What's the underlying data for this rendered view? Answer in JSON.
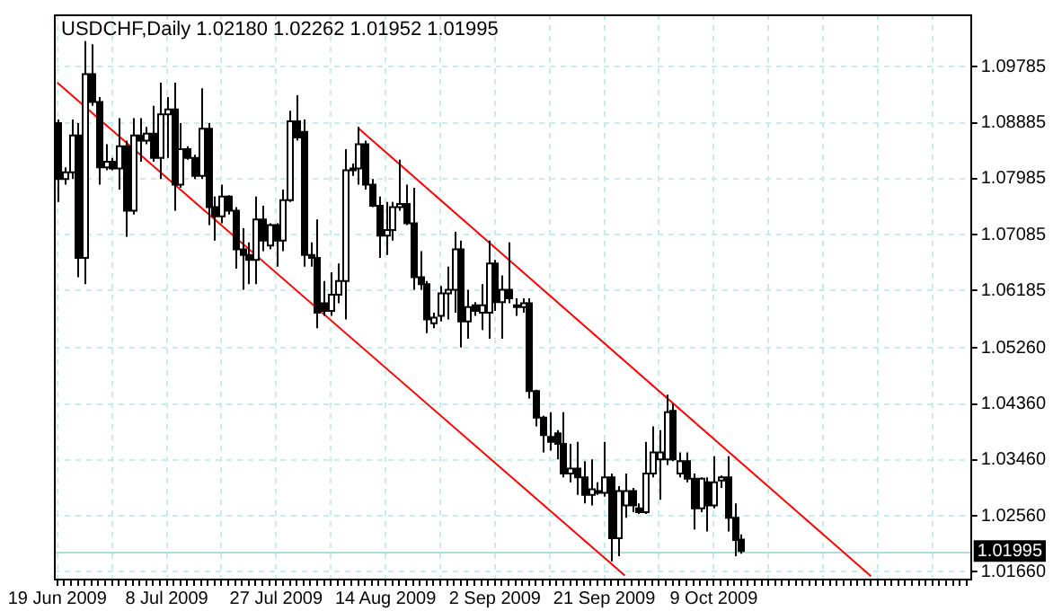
{
  "chart_data": {
    "type": "candlestick",
    "title": "USDCHF,Daily 1.02180 1.02262 1.01952 1.01995",
    "categories": [
      "19 Jun 2009",
      null,
      null,
      null,
      null,
      null,
      null,
      null,
      null,
      null,
      null,
      null,
      null,
      null,
      null,
      null,
      "8 Jul 2009",
      null,
      null,
      null,
      null,
      null,
      null,
      null,
      null,
      null,
      null,
      null,
      null,
      null,
      null,
      null,
      "27 Jul 2009",
      null,
      null,
      null,
      null,
      null,
      null,
      null,
      null,
      null,
      null,
      null,
      null,
      null,
      null,
      null,
      "14 Aug 2009",
      null,
      null,
      null,
      null,
      null,
      null,
      null,
      null,
      null,
      null,
      null,
      null,
      null,
      null,
      null,
      "2 Sep 2009",
      null,
      null,
      null,
      null,
      null,
      null,
      null,
      null,
      null,
      null,
      null,
      null,
      null,
      null,
      null,
      "21 Sep 2009",
      null,
      null,
      null,
      null,
      null,
      null,
      null,
      null,
      null,
      null,
      null,
      null,
      null,
      null,
      null,
      "9 Oct 2009",
      null,
      null,
      null,
      null,
      null,
      null,
      null,
      null,
      null,
      null,
      null,
      null,
      null,
      null,
      null,
      null,
      null,
      null,
      null,
      null,
      null,
      null,
      null,
      null,
      null,
      null,
      null,
      null,
      null,
      null,
      null,
      null,
      null,
      null,
      null,
      null,
      null
    ],
    "ohlc": [
      [
        1.0888,
        1.0894,
        1.0761,
        1.0798
      ],
      [
        1.0798,
        1.0817,
        1.0789,
        1.0809
      ],
      [
        1.0809,
        1.0894,
        1.0798,
        1.0868
      ],
      [
        1.0868,
        1.0888,
        1.064,
        1.0671
      ],
      [
        1.0671,
        1.102,
        1.0629,
        1.0967
      ],
      [
        1.0967,
        1.1015,
        1.0916,
        1.0922
      ],
      [
        1.0922,
        1.093,
        1.0789,
        1.0817
      ],
      [
        1.0817,
        1.0854,
        1.0812,
        1.0826
      ],
      [
        1.0826,
        1.0832,
        1.0812,
        1.0815
      ],
      [
        1.0815,
        1.0896,
        1.0781,
        1.0851
      ],
      [
        1.0851,
        1.086,
        1.0705,
        1.0747
      ],
      [
        1.0747,
        1.0896,
        1.0741,
        1.0868
      ],
      [
        1.0868,
        1.0896,
        1.0826,
        1.086
      ],
      [
        1.086,
        1.0882,
        1.0854,
        1.0871
      ],
      [
        1.0871,
        1.0916,
        1.0826,
        1.0832
      ],
      [
        1.0832,
        1.0953,
        1.0798,
        1.0902
      ],
      [
        1.0902,
        1.093,
        1.0832,
        1.091
      ],
      [
        1.091,
        1.0953,
        1.0747,
        1.0789
      ],
      [
        1.0789,
        1.0888,
        1.0784,
        1.0846
      ],
      [
        1.0846,
        1.0851,
        1.0829,
        1.0832
      ],
      [
        1.0832,
        1.0837,
        1.0798,
        1.0803
      ],
      [
        1.0803,
        1.0944,
        1.0798,
        1.0879
      ],
      [
        1.0879,
        1.0888,
        1.0724,
        1.0753
      ],
      [
        1.0753,
        1.077,
        1.0699,
        1.0738
      ],
      [
        1.0738,
        1.0789,
        1.0727,
        1.077
      ],
      [
        1.077,
        1.0772,
        1.0741,
        1.0747
      ],
      [
        1.0747,
        1.0753,
        1.0654,
        1.0685
      ],
      [
        1.0685,
        1.0719,
        1.062,
        1.0676
      ],
      [
        1.0676,
        1.0696,
        1.0629,
        1.0668
      ],
      [
        1.0668,
        1.077,
        1.0629,
        1.0733
      ],
      [
        1.0733,
        1.0755,
        1.0682,
        1.0699
      ],
      [
        1.0691,
        1.0727,
        1.0685,
        1.0724
      ],
      [
        1.0724,
        1.0727,
        1.0657,
        1.0699
      ],
      [
        1.0699,
        1.0781,
        1.0682,
        1.0764
      ],
      [
        1.0764,
        1.0908,
        1.0761,
        1.0891
      ],
      [
        1.0891,
        1.0933,
        1.086,
        1.0865
      ],
      [
        1.0874,
        1.0894,
        1.0657,
        1.0676
      ],
      [
        1.0676,
        1.0696,
        1.0657,
        1.0671
      ],
      [
        1.0671,
        1.0733,
        1.0558,
        1.0583
      ],
      [
        1.0598,
        1.0634,
        1.0578,
        1.0586
      ],
      [
        1.0586,
        1.0648,
        1.0578,
        1.0612
      ],
      [
        1.0612,
        1.0662,
        1.0598,
        1.0634
      ],
      [
        1.0634,
        1.0846,
        1.0572,
        1.0812
      ],
      [
        1.0812,
        1.0823,
        1.0803,
        1.0815
      ],
      [
        1.0815,
        1.0882,
        1.0789,
        1.0854
      ],
      [
        1.0854,
        1.086,
        1.0781,
        1.0789
      ],
      [
        1.0789,
        1.0798,
        1.0753,
        1.0755
      ],
      [
        1.0755,
        1.077,
        1.0671,
        1.0707
      ],
      [
        1.0707,
        1.0761,
        1.0676,
        1.0716
      ],
      [
        1.0716,
        1.0761,
        1.0699,
        1.0753
      ],
      [
        1.0753,
        1.0829,
        1.0747,
        1.0758
      ],
      [
        1.0758,
        1.0789,
        1.0724,
        1.0727
      ],
      [
        1.0727,
        1.0784,
        1.062,
        1.064
      ],
      [
        1.064,
        1.0682,
        1.062,
        1.0629
      ],
      [
        1.0629,
        1.0634,
        1.055,
        1.0572
      ],
      [
        1.0566,
        1.0583,
        1.0558,
        1.0575
      ],
      [
        1.0578,
        1.0626,
        1.0569,
        1.0614
      ],
      [
        1.0614,
        1.0657,
        1.0572,
        1.062
      ],
      [
        1.062,
        1.0713,
        1.0583,
        1.0685
      ],
      [
        1.0685,
        1.0699,
        1.0527,
        1.0569
      ],
      [
        1.0569,
        1.062,
        1.0541,
        1.0592
      ],
      [
        1.0595,
        1.06,
        1.0578,
        1.0586
      ],
      [
        1.0583,
        1.0629,
        1.0555,
        1.0595
      ],
      [
        1.0583,
        1.0699,
        1.0541,
        1.0662
      ],
      [
        1.0662,
        1.0668,
        1.0586,
        1.06
      ],
      [
        1.06,
        1.0643,
        1.0541,
        1.062
      ],
      [
        1.062,
        1.0696,
        1.0598,
        1.0606
      ],
      [
        1.0595,
        1.0606,
        1.0578,
        1.0592
      ],
      [
        1.0592,
        1.0606,
        1.0583,
        1.0598
      ],
      [
        1.0598,
        1.0606,
        1.0445,
        1.0457
      ],
      [
        1.0457,
        1.0459,
        1.04,
        1.0414
      ],
      [
        1.0414,
        1.0417,
        1.0358,
        1.0386
      ],
      [
        1.0383,
        1.0423,
        1.0361,
        1.0375
      ],
      [
        1.0389,
        1.0394,
        1.0347,
        1.0372
      ],
      [
        1.0372,
        1.0423,
        1.0318,
        1.0324
      ],
      [
        1.0324,
        1.0372,
        1.031,
        1.0332
      ],
      [
        1.0332,
        1.0375,
        1.029,
        1.0318
      ],
      [
        1.0318,
        1.0344,
        1.0276,
        1.029
      ],
      [
        1.029,
        1.0347,
        1.0273,
        1.0299
      ],
      [
        1.0296,
        1.031,
        1.029,
        1.0293
      ],
      [
        1.0293,
        1.0375,
        1.0287,
        1.0318
      ],
      [
        1.0318,
        1.0324,
        1.0183,
        1.022
      ],
      [
        1.022,
        1.0304,
        1.0191,
        1.0296
      ],
      [
        1.0273,
        1.0324,
        1.0253,
        1.0296
      ],
      [
        1.0296,
        1.0301,
        1.0262,
        1.0273
      ],
      [
        1.0268,
        1.0276,
        1.0259,
        1.0262
      ],
      [
        1.0262,
        1.0375,
        1.0259,
        1.0324
      ],
      [
        1.0324,
        1.04,
        1.0318,
        1.0358
      ],
      [
        1.0347,
        1.0394,
        1.0282,
        1.0358
      ],
      [
        1.0347,
        1.0451,
        1.0338,
        1.0423
      ],
      [
        1.0425,
        1.0437,
        1.0344,
        1.0347
      ],
      [
        1.0324,
        1.0358,
        1.0318,
        1.0344
      ],
      [
        1.0344,
        1.0358,
        1.031,
        1.0316
      ],
      [
        1.0316,
        1.0324,
        1.0234,
        1.0268
      ],
      [
        1.0268,
        1.0318,
        1.0262,
        1.0316
      ],
      [
        1.031,
        1.0318,
        1.0231,
        1.0273
      ],
      [
        1.0273,
        1.0352,
        1.0268,
        1.031
      ],
      [
        1.0313,
        1.0321,
        1.0301,
        1.0318
      ],
      [
        1.0318,
        1.0352,
        1.0231,
        1.0253
      ],
      [
        1.0253,
        1.0276,
        1.0191,
        1.0217
      ],
      [
        1.0218,
        1.02262,
        1.01952,
        1.01995
      ],
      null,
      null,
      null,
      null,
      null,
      null,
      null,
      null,
      null,
      null,
      null,
      null,
      null,
      null,
      null,
      null,
      null,
      null,
      null,
      null,
      null,
      null,
      null,
      null,
      null,
      null,
      null,
      null,
      null,
      null,
      null,
      null,
      null
    ],
    "color": "#000000",
    "series": [
      {
        "type": "line",
        "color": "#ff0000",
        "values": [
          1.0953,
          null,
          null,
          null,
          null,
          null,
          null,
          null,
          null,
          null,
          null,
          null,
          null,
          null,
          null,
          null,
          null,
          null,
          null,
          null,
          null,
          null,
          null,
          null,
          null,
          null,
          null,
          null,
          null,
          null,
          null,
          null,
          null,
          null,
          null,
          null,
          null,
          null,
          null,
          null,
          null,
          null,
          null,
          null,
          null,
          null,
          null,
          null,
          null,
          null,
          null,
          null,
          null,
          null,
          null,
          null,
          null,
          null,
          null,
          null,
          null,
          null,
          null,
          null,
          null,
          null,
          null,
          null,
          null,
          null,
          null,
          null,
          null,
          null,
          null,
          null,
          null,
          null,
          null,
          null,
          null,
          null,
          null,
          1.016,
          null,
          null,
          null,
          null,
          null,
          null,
          null,
          null,
          null,
          null,
          null,
          null,
          null,
          null,
          null,
          null,
          null,
          null,
          null,
          null,
          null,
          null,
          null,
          null,
          null,
          null,
          null,
          null,
          null,
          null,
          null,
          null,
          null,
          null,
          null,
          null,
          null,
          null,
          null,
          null,
          null,
          null,
          null,
          null,
          null,
          null,
          null,
          null,
          null,
          null
        ]
      },
      {
        "type": "line",
        "color": "#ff0000",
        "values": [
          null,
          null,
          null,
          null,
          null,
          null,
          null,
          null,
          null,
          null,
          null,
          null,
          null,
          null,
          null,
          null,
          null,
          null,
          null,
          null,
          null,
          null,
          null,
          null,
          null,
          null,
          null,
          null,
          null,
          null,
          null,
          null,
          null,
          null,
          null,
          null,
          null,
          null,
          null,
          null,
          null,
          null,
          null,
          null,
          1.088,
          null,
          null,
          null,
          null,
          null,
          null,
          null,
          null,
          null,
          null,
          null,
          null,
          null,
          null,
          null,
          null,
          null,
          null,
          null,
          null,
          null,
          null,
          null,
          null,
          null,
          null,
          null,
          null,
          null,
          null,
          null,
          null,
          null,
          null,
          null,
          null,
          null,
          null,
          null,
          null,
          null,
          null,
          null,
          null,
          null,
          null,
          null,
          null,
          null,
          null,
          null,
          null,
          null,
          null,
          null,
          null,
          null,
          null,
          null,
          null,
          null,
          null,
          null,
          null,
          null,
          null,
          null,
          null,
          null,
          null,
          null,
          null,
          null,
          null,
          1.0159,
          null,
          null,
          null,
          null,
          null,
          null,
          null,
          null,
          null,
          null,
          null,
          null,
          null,
          null
        ]
      }
    ],
    "ylim": [
      1.0155,
      1.1063
    ],
    "yticks": [
      1.09785,
      1.08885,
      1.07985,
      1.07085,
      1.06185,
      {
        "value": 1.0526,
        "label": "1.05260"
      },
      {
        "value": 1.0436,
        "label": "1.04360"
      },
      {
        "value": 1.0346,
        "label": "1.03460"
      },
      {
        "value": 1.0256,
        "label": "1.02560"
      },
      {
        "value": 1.0166,
        "label": "1.01660"
      }
    ],
    "ref_lines": [
      {
        "axis": "y",
        "value": 1.01995,
        "label": "1.01995",
        "color": "#a8e0e0"
      }
    ],
    "grid": true
  }
}
